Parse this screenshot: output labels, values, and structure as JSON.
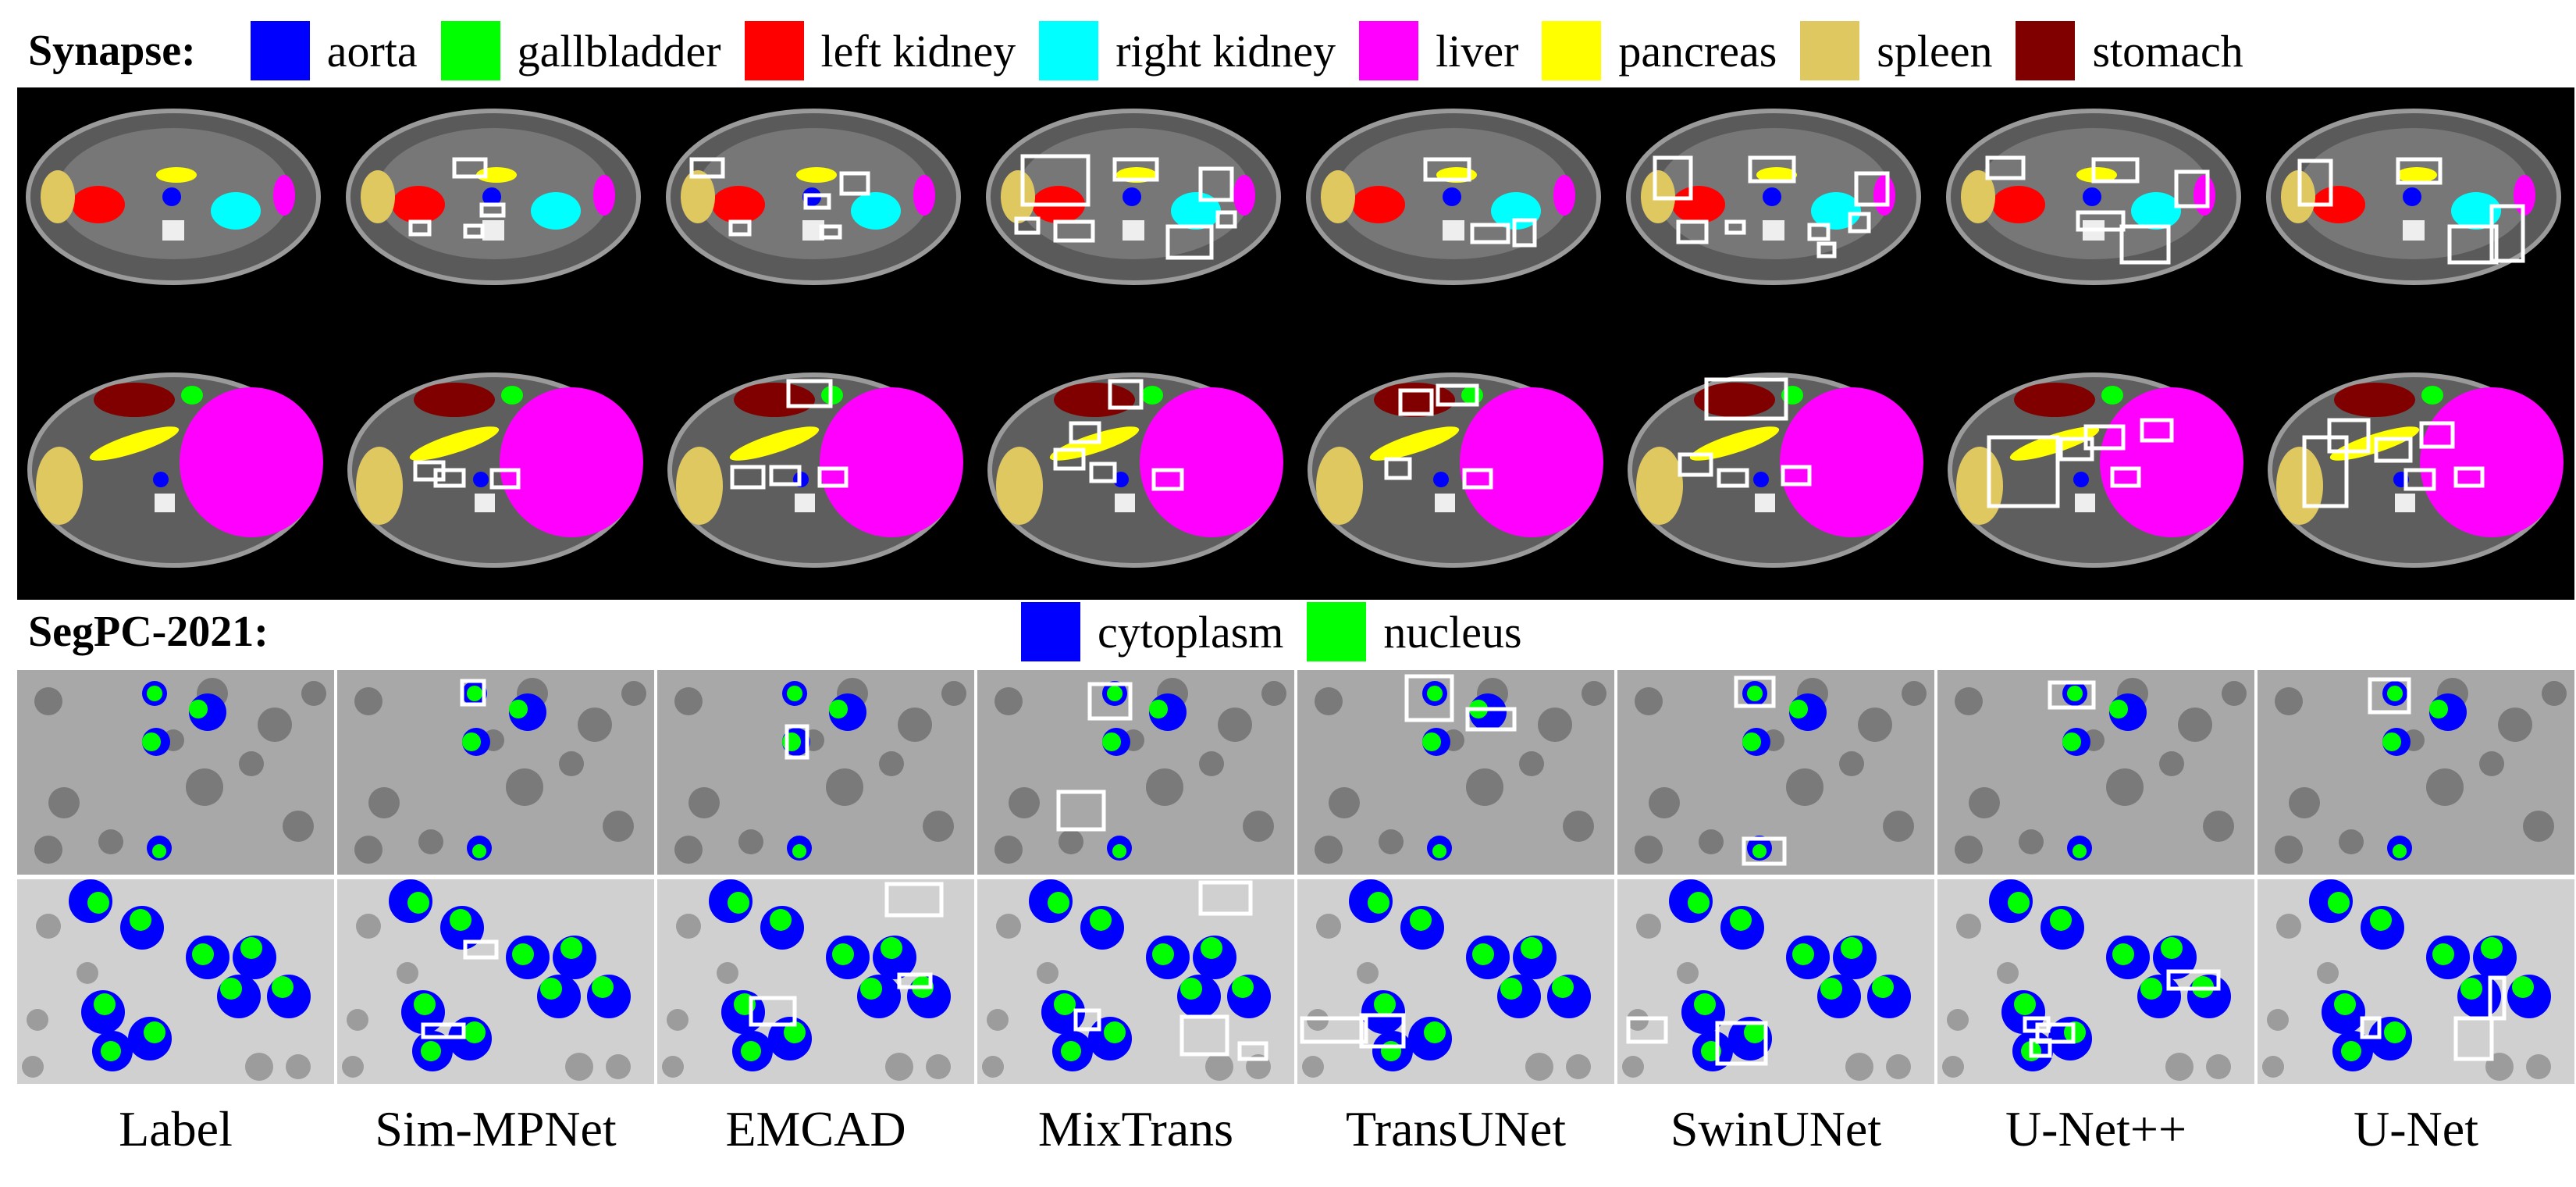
{
  "synapse": {
    "label": "Synapse:",
    "legend": [
      {
        "name": "aorta",
        "color": "#0000ff"
      },
      {
        "name": "gallbladder",
        "color": "#00ff00"
      },
      {
        "name": "left kidney",
        "color": "#ff0000"
      },
      {
        "name": "right kidney",
        "color": "#00ffff"
      },
      {
        "name": "liver",
        "color": "#ff00ff"
      },
      {
        "name": "pancreas",
        "color": "#ffff00"
      },
      {
        "name": "spleen",
        "color": "#e0c860"
      },
      {
        "name": "stomach",
        "color": "#800000"
      }
    ]
  },
  "segpc": {
    "label": "SegPC-2021:",
    "legend": [
      {
        "name": "cytoplasm",
        "color": "#0000ff"
      },
      {
        "name": "nucleus",
        "color": "#00ff00"
      }
    ]
  },
  "methods": [
    "Label",
    "Sim-MPNet",
    "EMCAD",
    "MixTrans",
    "TransUNet",
    "SwinUNet",
    "U-Net++",
    "U-Net"
  ]
}
